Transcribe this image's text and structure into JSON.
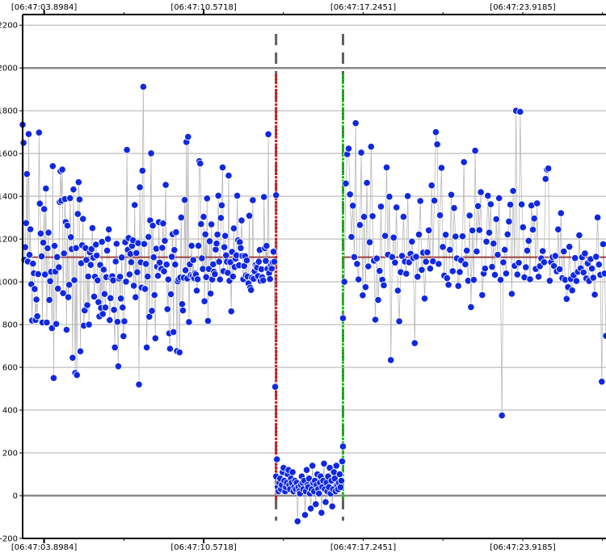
{
  "chart_data": {
    "type": "scatter",
    "title": "",
    "xlabel": "",
    "ylabel": "",
    "ylim": [
      -200,
      2250
    ],
    "y_ticks": [
      -200,
      0,
      200,
      400,
      600,
      800,
      1000,
      1200,
      1400,
      1600,
      1800,
      2000,
      2200
    ],
    "x_tick_labels": [
      "[06:47:03.8984]",
      "[06:47:10.5718]",
      "[06:47:17.2451]",
      "[06:47:23.9185]"
    ],
    "x_ticks_seconds": [
      3.8984,
      10.5718,
      17.2451,
      23.9185
    ],
    "xlim_seconds": [
      3.0,
      27.4
    ],
    "grid": true,
    "legend": "none",
    "mean_value": 1115,
    "colors": {
      "points": "#1028e0",
      "point_edge": "#ffffff",
      "connector": "#b8b8b8",
      "mean_line": "#9c4040",
      "low_mean_line": "#8a6a6a",
      "start_marker": "#e01010",
      "end_marker": "#10c010",
      "dashed_bound": "#606060",
      "major_grid": "#888888",
      "minor_grid": "#c8c8c8"
    },
    "selection": {
      "start_seconds": 13.6,
      "end_seconds": 16.4,
      "marker_top_value": 1970,
      "mean_value": 40
    },
    "series": [
      {
        "x_start_seconds": 3.0,
        "x_end_seconds": 13.6,
        "values": [
          1735,
          1650,
          1103,
          1162,
          1275,
          1504,
          1095,
          1691,
          1126,
          1246,
          989,
          819,
          1085,
          1040,
          966,
          821,
          917,
          839,
          1036,
          1698,
          1366,
          1226,
          1119,
          810,
          1183,
          1340,
          1034,
          1436,
          810,
          1157,
          1230,
          915,
          1003,
          1047,
          783,
          1541,
          550,
          1168,
          1048,
          803,
          1116,
          968,
          1068,
          1373,
          1518,
          1379,
          1525,
          947,
          1133,
          1387,
          1280,
          776,
          1263,
          928,
          986,
          1391,
          1209,
          1153,
          645,
          1432,
          1008,
          574,
          1158,
          564,
          1317,
          1466,
          1385,
          675,
          1087,
          1171,
          1294,
          795,
          866,
          1158,
          1102,
          891,
          1025,
          800,
          1138,
          1079,
          1153,
          1251,
          1113,
          931,
          1024,
          1174,
          1123,
          1007,
          905,
          838,
          1079,
          878,
          1187,
          850,
          1057,
          943,
          880,
          1022,
          1146,
          1200,
          1245,
          821,
          924,
          1017,
          1026,
          1007,
          869,
          693,
          1095,
          1178,
          813,
          605,
          1016,
          1024,
          922,
          1114,
          880,
          746,
          815,
          1185,
          1001,
          1617,
          1150,
          1205,
          1035,
          1130,
          1092,
          1168,
          1194,
          982,
          1359,
          928,
          1135,
          1045,
          1181,
          520,
          1442,
          1091,
          973,
          1520,
          1912,
          1177,
          967,
          1084,
          693,
          1025,
          1210,
          837,
          1287,
          1601,
          864,
          1263,
          1115,
          938,
          736,
          1155,
          1071,
          1028,
          1279,
          1090,
          1059,
          1061,
          1159,
          1273,
          1049,
          1192,
          1453,
          1081,
          872,
          1011,
          759,
          687,
          942,
          1117,
          1223,
          765,
          1149,
          1081,
          1232,
          676,
          1002,
          1012,
          670,
          1020,
          1301,
          896,
          866,
          1019,
          1383,
          1054,
          1654,
          1015,
          1678,
          812,
          1082,
          1031,
          1169,
          1027,
          1102,
          1017,
          1040,
          1034,
          959,
          1012,
          1169,
          1564,
          1553,
          1270,
          1110,
          1060,
          1304,
          909,
          1222,
          1022,
          1390,
          817,
          1060,
          1190,
          945,
          1269,
          1011,
          1082,
          1047,
          1036,
          1151,
          1179,
          1221,
          1403,
          1094,
          1011,
          1299,
          1358,
          1535,
          1050,
          1162,
          1215,
          1124,
          1094,
          1042,
          1497,
          1005,
          1092,
          862,
          1140,
          1025,
          1250,
          1069,
          1108,
          1124,
          1403,
          1194,
          1077,
          1186,
          1158,
          1287,
          1121,
          1012,
          1074,
          1120,
          1030,
          1100,
          1025,
          993,
          1309,
          973,
          962,
          1019,
          1382,
          1014,
          1050,
          1078,
          1070,
          1066,
          1027,
          1094,
          1149,
          1005,
          1059,
          1021,
          1007,
          1397,
          1157,
          1098,
          1168,
          1061,
          1690,
          1041,
          1013,
          1077,
          1062,
          1091,
          1141,
          1094,
          509,
          1405
        ]
      },
      {
        "x_start_seconds": 13.6,
        "x_end_seconds": 16.4,
        "values": [
          90,
          170,
          40,
          20,
          60,
          80,
          30,
          50,
          110,
          130,
          70,
          20,
          40,
          60,
          100,
          120,
          50,
          30,
          80,
          60,
          110,
          20,
          40,
          70,
          30,
          60,
          -120,
          40,
          20,
          10,
          50,
          90,
          60,
          30,
          70,
          -90,
          20,
          120,
          50,
          40,
          80,
          10,
          -60,
          30,
          140,
          60,
          20,
          70,
          -40,
          50,
          100,
          30,
          10,
          60,
          90,
          -80,
          40,
          70,
          150,
          30,
          -30,
          60,
          20,
          90,
          40,
          130,
          10,
          70,
          -50,
          30,
          110,
          80,
          20,
          140,
          50,
          30,
          60,
          100,
          40,
          70,
          160,
          230
        ]
      },
      {
        "x_start_seconds": 16.4,
        "x_end_seconds": 27.4,
        "values": [
          830,
          1000,
          1460,
          1597,
          1623,
          1409,
          1210,
          1356,
          1116,
          1742,
          1084,
          1011,
          1266,
          1604,
          937,
          1304,
          975,
          1463,
          1072,
          1185,
          1632,
          1307,
          1099,
          823,
          1109,
          915,
          1051,
          1352,
          1010,
          984,
          1215,
          1535,
          1127,
          1398,
          634,
          1116,
          1207,
          1090,
          1348,
          959,
          815,
          1045,
          1121,
          1304,
          1095,
          1038,
          1401,
          1091,
          1131,
          1188,
          1111,
          713,
          1117,
          1024,
          1221,
          1378,
          1056,
          1136,
          922,
          1094,
          1138,
          1241,
          1062,
          1451,
          1096,
          1380,
          1700,
          1643,
          1084,
          1311,
          1533,
          1163,
          1029,
          1220,
          1017,
          986,
          1150,
          1407,
          1050,
          1345,
          1212,
          1110,
          981,
          1046,
          1101,
          1213,
          1560,
          1082,
          1146,
          1005,
          1310,
          882,
          1240,
          1009,
          1613,
          1142,
          1354,
          1242,
          1419,
          938,
          1039,
          1062,
          1188,
          1403,
          1230,
          1363,
          1070,
          1179,
          1033,
          1293,
          1126,
          1391,
          1009,
          375,
          1091,
          1150,
          1039,
          1222,
          1282,
          1361,
          944,
          1425,
          1075,
          1800,
          1034,
          1089,
          1795,
          1362,
          1255,
          1021,
          1068,
          1146,
          1192,
          1012,
          1357,
          1244,
          1296,
          1060,
          1367,
          1024,
          1073,
          1109,
          1144,
          1092,
          1481,
          1525,
          1530,
          1005,
          1092,
          1116,
          1074,
          1121,
          1049,
          1245,
          1059,
          1321,
          1017,
          1142,
          1009,
          920,
          975,
          1164,
          1013,
          960,
          1031,
          1111,
          1004,
          1047,
          1218,
          1063,
          1115,
          1044,
          1133,
          1016,
          1086,
          1004,
          1106,
          1062,
          1019,
          940,
          1117,
          1301,
          1081,
          1033,
          533,
          1176,
          1039,
          747
        ]
      }
    ]
  }
}
